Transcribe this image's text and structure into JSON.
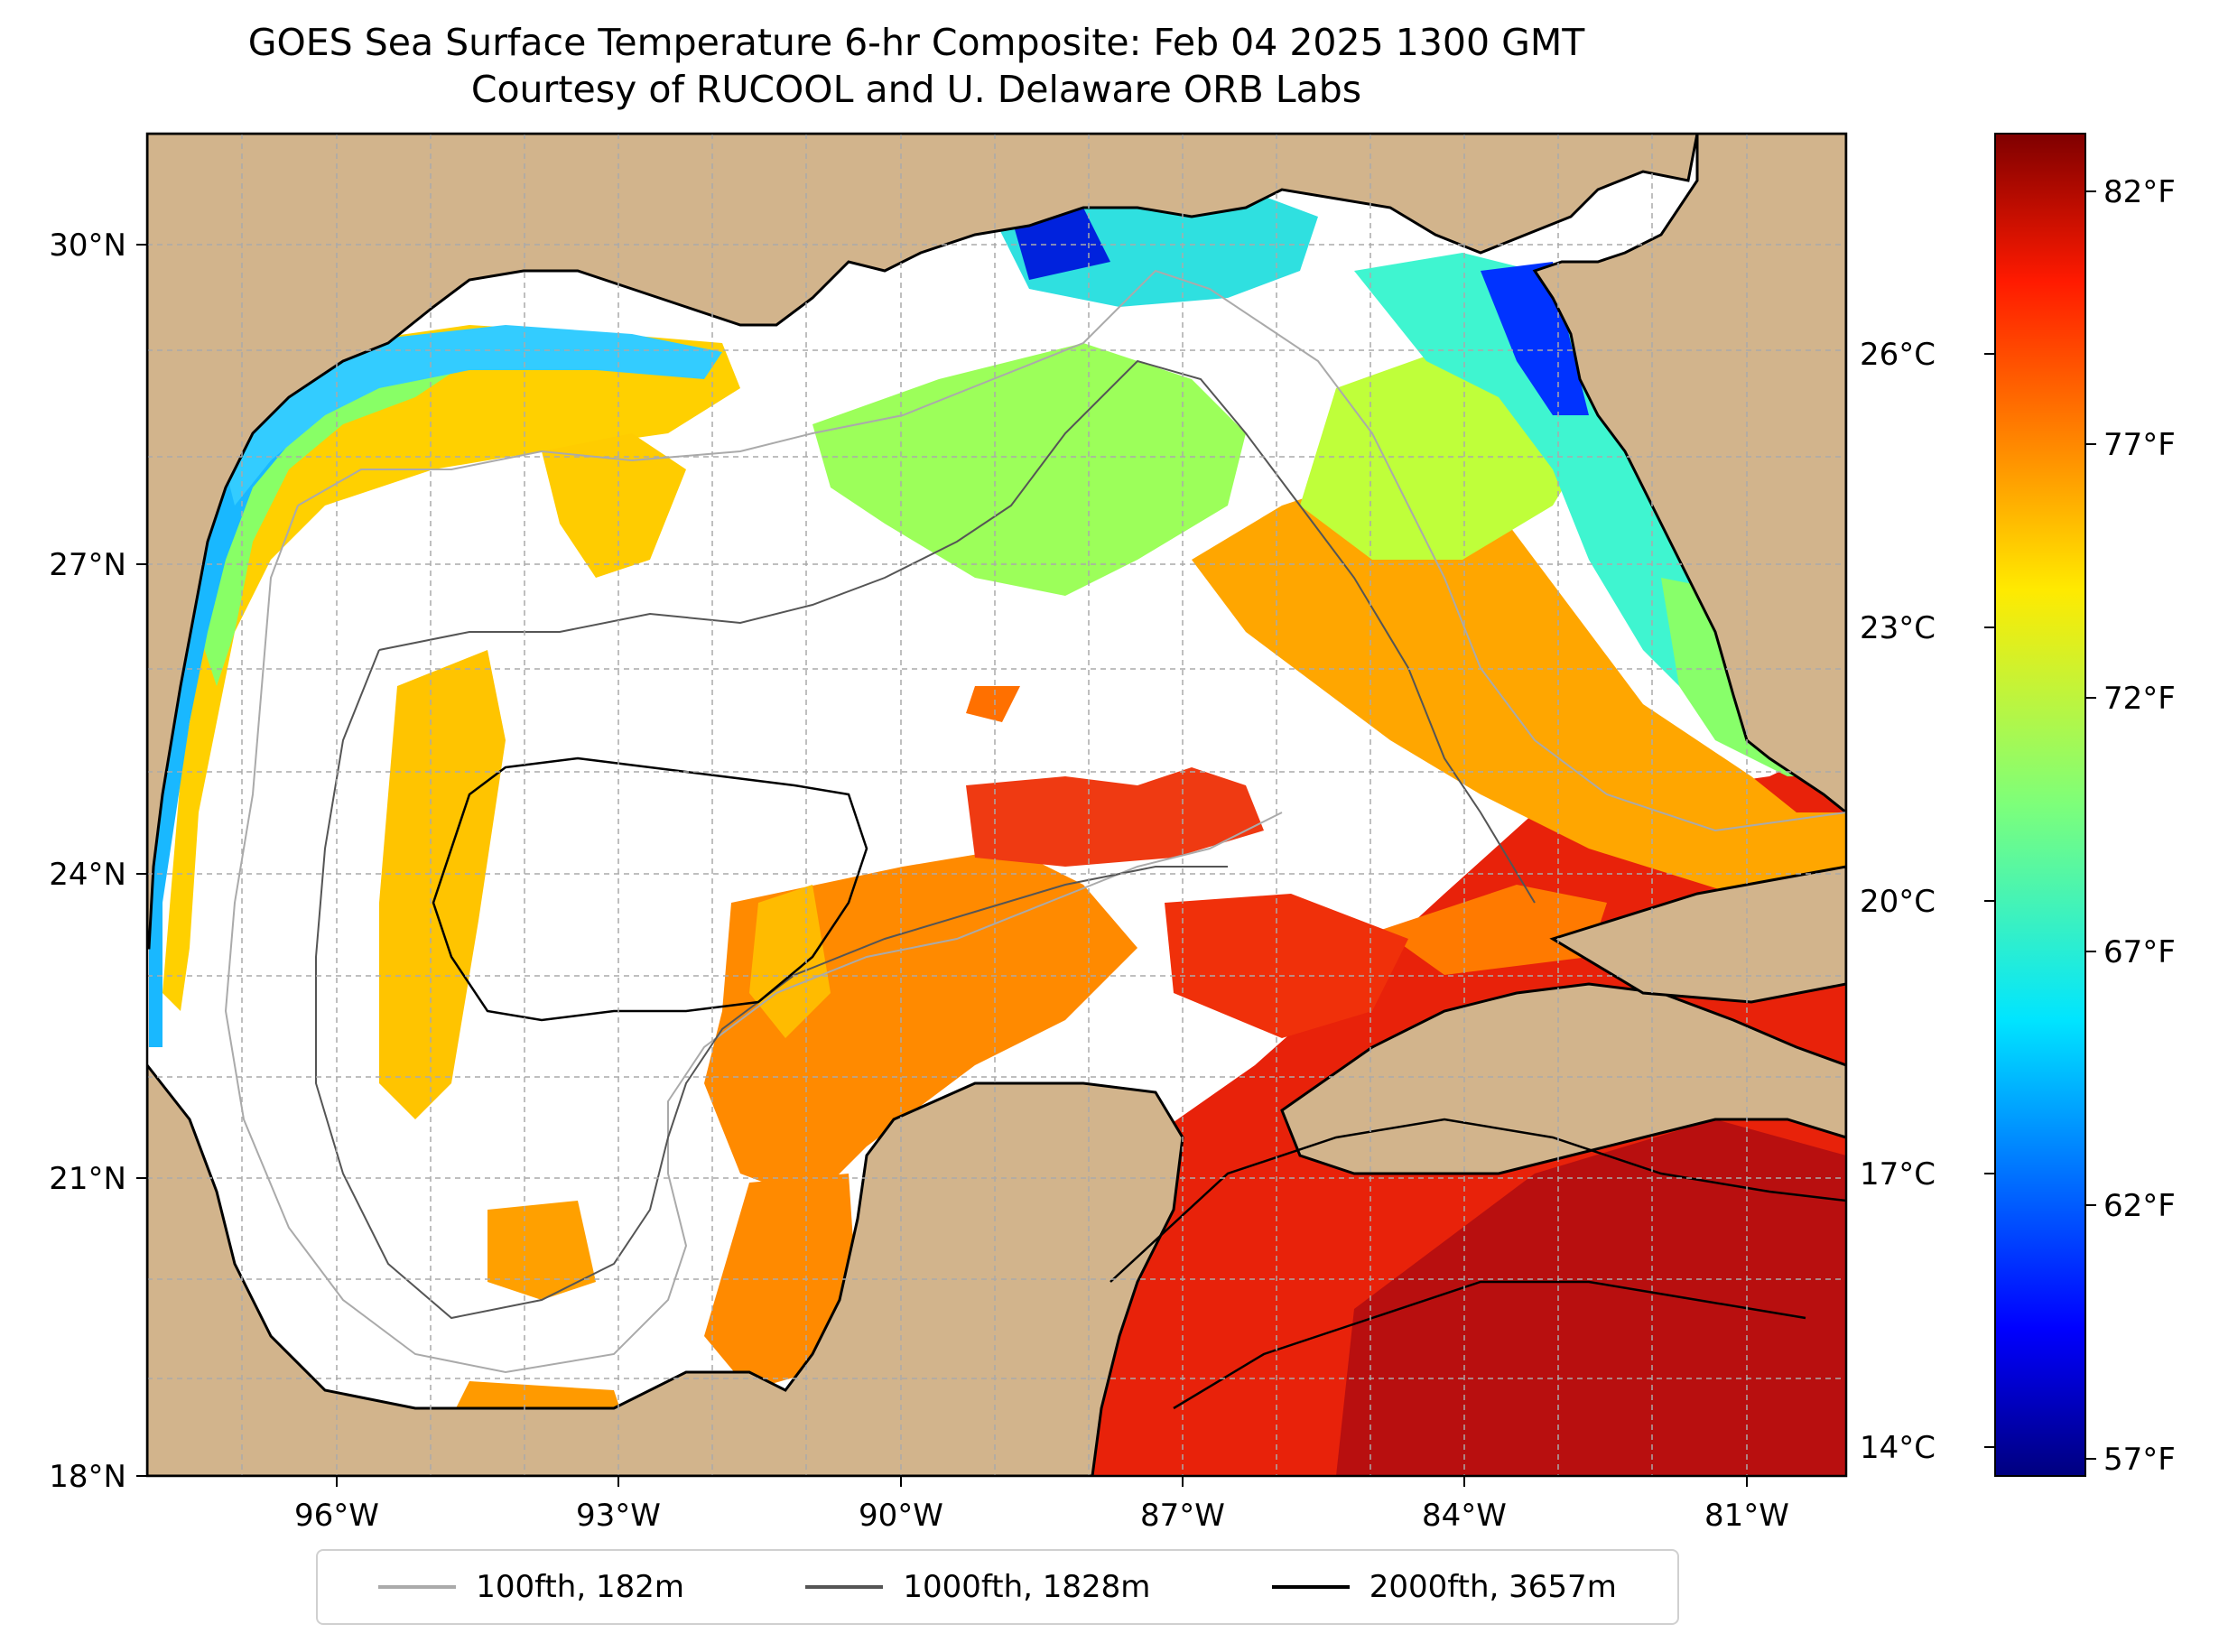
{
  "title": "GOES Sea Surface Temperature 6-hr Composite: Feb 04 2025 1300 GMT",
  "subtitle": "Courtesy of RUCOOL and U. Delaware ORB Labs",
  "map": {
    "lat_ticks": [
      "30°N",
      "27°N",
      "24°N",
      "21°N",
      "18°N"
    ],
    "lon_ticks": [
      "96°W",
      "93°W",
      "90°W",
      "87°W",
      "84°W",
      "81°W"
    ],
    "extent": {
      "lon_min": -98.0,
      "lon_max": -80.0,
      "lat_min": 18.0,
      "lat_max": 31.0
    },
    "land_color": "#d2b48c",
    "gridlines": true
  },
  "colorbar": {
    "celsius_ticks": [
      "26°C",
      "23°C",
      "20°C",
      "17°C",
      "14°C"
    ],
    "fahrenheit_ticks": [
      "82°F",
      "77°F",
      "72°F",
      "67°F",
      "62°F",
      "57°F"
    ],
    "colormap": "jet",
    "range_c": [
      13.8,
      28.2
    ]
  },
  "legend": [
    {
      "label": "100fth, 182m",
      "color": "#aaaaaa"
    },
    {
      "label": "1000fth, 1828m",
      "color": "#555555"
    },
    {
      "label": "2000fth, 3657m",
      "color": "#000000"
    }
  ]
}
